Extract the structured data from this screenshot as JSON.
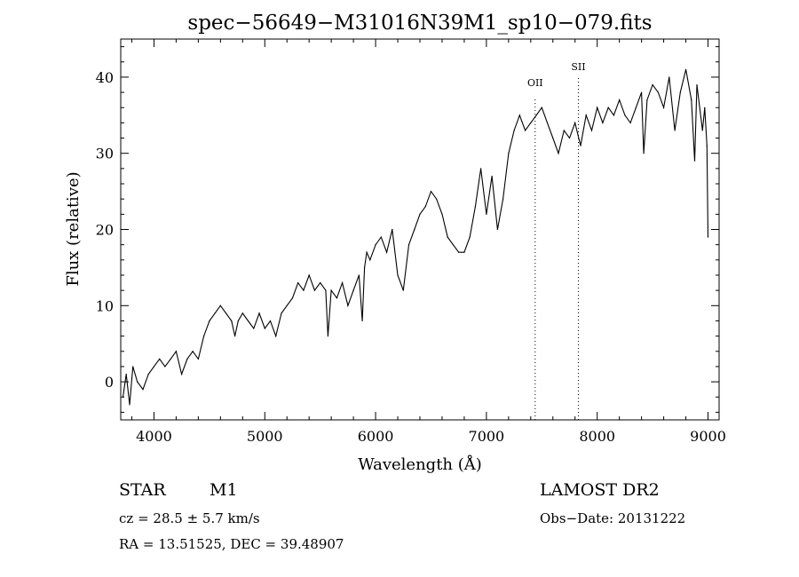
{
  "chart_data": {
    "type": "line",
    "title": "spec−56649−M31016N39M1_sp10−079.fits",
    "xlabel": "Wavelength (Å)",
    "ylabel": "Flux (relative)",
    "xlim": [
      3700,
      9100
    ],
    "ylim": [
      -5,
      45
    ],
    "xticks": [
      4000,
      5000,
      6000,
      7000,
      8000,
      9000
    ],
    "yticks": [
      0,
      10,
      20,
      30,
      40
    ],
    "line_color": "#000000",
    "spectral_lines": [
      {
        "label": "OII",
        "x": 7440
      },
      {
        "label": "SII",
        "x": 7830
      }
    ],
    "series": [
      {
        "x": [
          3720,
          3750,
          3780,
          3810,
          3850,
          3900,
          3950,
          4000,
          4050,
          4100,
          4150,
          4200,
          4250,
          4300,
          4350,
          4400,
          4450,
          4500,
          4550,
          4600,
          4650,
          4700,
          4730,
          4760,
          4800,
          4850,
          4900,
          4950,
          5000,
          5050,
          5100,
          5150,
          5200,
          5250,
          5300,
          5350,
          5400,
          5450,
          5500,
          5550,
          5570,
          5600,
          5650,
          5700,
          5750,
          5800,
          5850,
          5880,
          5900,
          5920,
          5950,
          6000,
          6050,
          6100,
          6150,
          6200,
          6250,
          6300,
          6350,
          6400,
          6450,
          6500,
          6550,
          6600,
          6650,
          6700,
          6750,
          6800,
          6850,
          6900,
          6950,
          7000,
          7050,
          7100,
          7150,
          7200,
          7250,
          7300,
          7350,
          7400,
          7450,
          7500,
          7550,
          7600,
          7650,
          7700,
          7750,
          7800,
          7850,
          7900,
          7950,
          8000,
          8050,
          8100,
          8150,
          8200,
          8250,
          8300,
          8350,
          8400,
          8420,
          8450,
          8500,
          8550,
          8600,
          8650,
          8700,
          8750,
          8800,
          8850,
          8880,
          8900,
          8950,
          8970,
          8990,
          9000
        ],
        "y": [
          -2,
          1,
          -3,
          2,
          0,
          -1,
          1,
          2,
          3,
          2,
          3,
          4,
          1,
          3,
          4,
          3,
          6,
          8,
          9,
          10,
          9,
          8,
          6,
          8,
          9,
          8,
          7,
          9,
          7,
          8,
          6,
          9,
          10,
          11,
          13,
          12,
          14,
          12,
          13,
          12,
          6,
          12,
          11,
          13,
          10,
          12,
          14,
          8,
          15,
          17,
          16,
          18,
          19,
          17,
          20,
          14,
          12,
          18,
          20,
          22,
          23,
          25,
          24,
          22,
          19,
          18,
          17,
          17,
          19,
          23,
          28,
          22,
          27,
          20,
          24,
          30,
          33,
          35,
          33,
          34,
          35,
          36,
          34,
          32,
          30,
          33,
          32,
          34,
          31,
          35,
          33,
          36,
          34,
          36,
          35,
          37,
          35,
          34,
          36,
          38,
          30,
          37,
          39,
          38,
          36,
          40,
          33,
          38,
          41,
          37,
          29,
          39,
          33,
          36,
          31,
          19
        ]
      }
    ]
  },
  "info": {
    "class": "STAR",
    "subclass": "M1",
    "survey": "LAMOST DR2",
    "cz": "cz = 28.5 ± 5.7 km/s",
    "obs_date": "Obs−Date: 20131222",
    "coords": "RA =   13.51525, DEC =   39.48907"
  }
}
